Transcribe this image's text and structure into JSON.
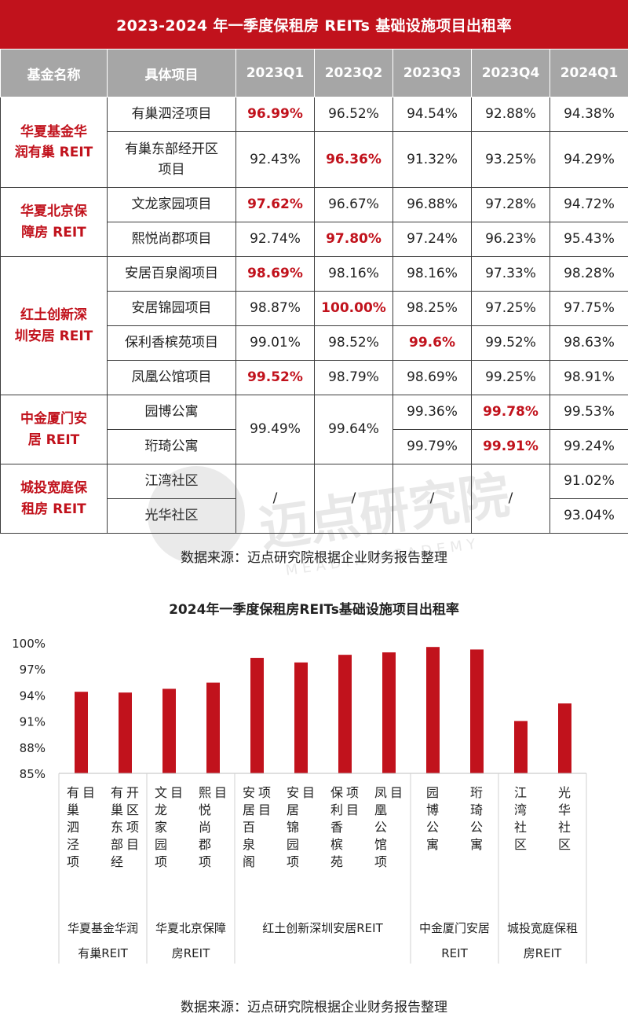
{
  "table": {
    "title": "2023-2024 年一季度保租房 REITs 基础设施项目出租率",
    "headers": [
      "基金名称",
      "具体项目",
      "2023Q1",
      "2023Q2",
      "2023Q3",
      "2023Q4",
      "2024Q1"
    ],
    "funds": [
      {
        "line1": "华夏基金华",
        "line2": "润有巢 REIT"
      },
      {
        "line1": "华夏北京保",
        "line2": "障房 REIT"
      },
      {
        "line1": "红土创新深",
        "line2": "圳安居 REIT"
      },
      {
        "line1": "中金厦门安",
        "line2": "居 REIT"
      },
      {
        "line1": "城投宽庭保",
        "line2": "租房 REIT"
      }
    ],
    "projects": [
      {
        "line1": "有巢泗泾项目",
        "line2": ""
      },
      {
        "line1": "有巢东部经开区",
        "line2": "项目"
      },
      {
        "line1": "文龙家园项目",
        "line2": ""
      },
      {
        "line1": "熙悦尚郡项目",
        "line2": ""
      },
      {
        "line1": "安居百泉阁项目",
        "line2": ""
      },
      {
        "line1": "安居锦园项目",
        "line2": ""
      },
      {
        "line1": "保利香槟苑项目",
        "line2": ""
      },
      {
        "line1": "凤凰公馆项目",
        "line2": ""
      },
      {
        "line1": "园博公寓",
        "line2": ""
      },
      {
        "line1": "珩琦公寓",
        "line2": ""
      },
      {
        "line1": "江湾社区",
        "line2": ""
      },
      {
        "line1": "光华社区",
        "line2": ""
      }
    ],
    "values": [
      [
        "96.99%",
        "96.52%",
        "94.54%",
        "92.88%",
        "94.38%"
      ],
      [
        "92.43%",
        "96.36%",
        "91.32%",
        "93.25%",
        "94.29%"
      ],
      [
        "97.62%",
        "96.67%",
        "96.88%",
        "97.28%",
        "94.72%"
      ],
      [
        "92.74%",
        "97.80%",
        "97.24%",
        "96.23%",
        "95.43%"
      ],
      [
        "98.69%",
        "98.16%",
        "98.16%",
        "97.33%",
        "98.28%"
      ],
      [
        "98.87%",
        "100.00%",
        "98.25%",
        "97.25%",
        "97.75%"
      ],
      [
        "99.01%",
        "98.52%",
        "99.6%",
        "99.52%",
        "98.63%"
      ],
      [
        "99.52%",
        "98.79%",
        "98.69%",
        "99.25%",
        "98.91%"
      ],
      [
        "99.49%",
        "99.64%",
        "99.36%",
        "99.78%",
        "99.53%"
      ],
      [
        "",
        "",
        "99.79%",
        "99.91%",
        "99.24%"
      ],
      [
        "/",
        "/",
        "/",
        "/",
        "91.02%"
      ],
      [
        "",
        "",
        "",
        "",
        "93.04%"
      ]
    ],
    "highlight_color": "#c1121c",
    "header_bg": "#a6a6a6"
  },
  "watermark": {
    "text": "迈点研究院",
    "subtext": "MEADIN ACADEMY"
  },
  "source_top": "数据来源：迈点研究院根据企业财务报告整理",
  "source_bottom": "数据来源：迈点研究院根据企业财务报告整理",
  "chart_data": {
    "type": "bar",
    "title": "2024年一季度保租房REITs基础设施项目出租率",
    "categories": [
      "有巢泗泾项目",
      "有巢东部经开区项目",
      "文龙家园项目",
      "熙悦尚郡项目",
      "安居百泉阁项目",
      "安居锦园项目",
      "保利香槟苑项目",
      "凤凰公馆项目",
      "园博公寓",
      "珩琦公寓",
      "江湾社区",
      "光华社区"
    ],
    "values": [
      94.38,
      94.29,
      94.72,
      95.43,
      98.28,
      97.75,
      98.63,
      98.91,
      99.53,
      99.24,
      91.02,
      93.04
    ],
    "ylim": [
      85,
      100
    ],
    "yticks": [
      "85%",
      "88%",
      "91%",
      "94%",
      "97%",
      "100%"
    ],
    "bar_color": "#c1121c",
    "groups": [
      {
        "line1": "华夏基金华润",
        "line2": "有巢REIT",
        "count": 2
      },
      {
        "line1": "华夏北京保障",
        "line2": "房REIT",
        "count": 2
      },
      {
        "line1": "红土创新深圳安居REIT",
        "line2": "",
        "count": 4
      },
      {
        "line1": "中金厦门安居",
        "line2": "REIT",
        "count": 2
      },
      {
        "line1": "城投宽庭保租",
        "line2": "房REIT",
        "count": 2
      }
    ],
    "grid": false,
    "legend": "none"
  }
}
